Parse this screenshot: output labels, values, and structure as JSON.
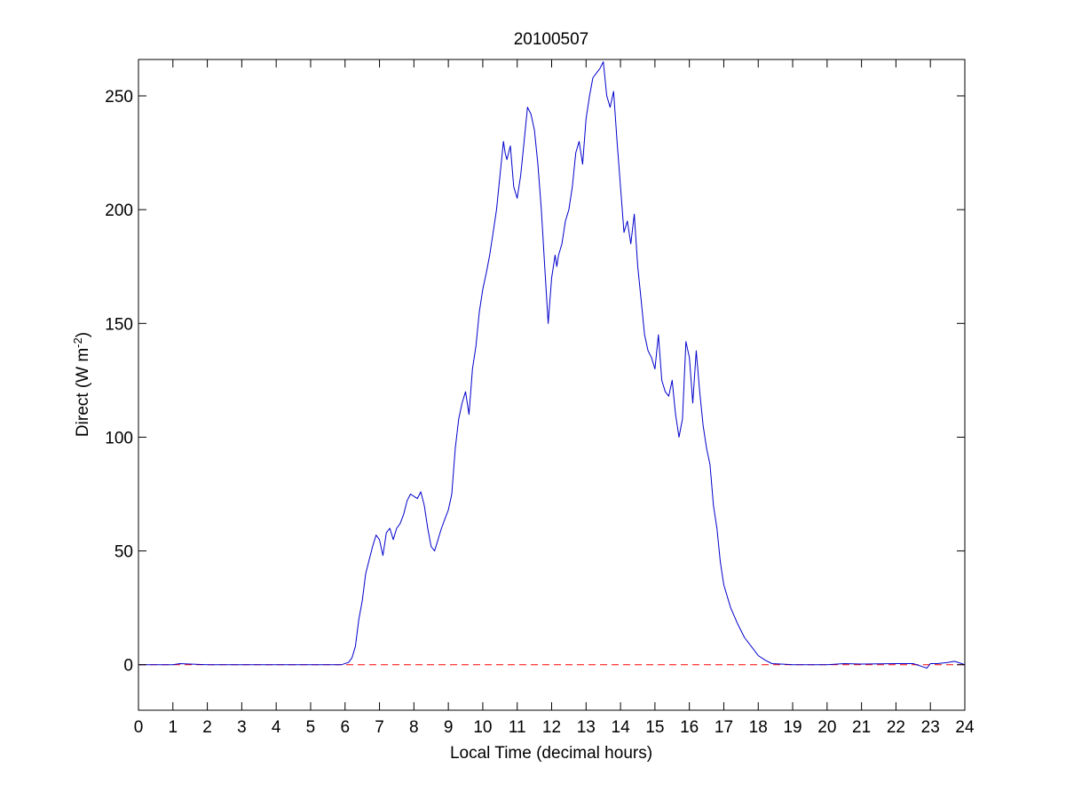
{
  "chart_data": {
    "type": "line",
    "title": "20100507",
    "xlabel": "Local Time (decimal hours)",
    "ylabel_main": "Direct (W m",
    "ylabel_sup": "-2",
    "ylabel_close": ")",
    "xlim": [
      0,
      24
    ],
    "ylim": [
      -20,
      266
    ],
    "xticks": [
      0,
      1,
      2,
      3,
      4,
      5,
      6,
      7,
      8,
      9,
      10,
      11,
      12,
      13,
      14,
      15,
      16,
      17,
      18,
      19,
      20,
      21,
      22,
      23,
      24
    ],
    "yticks": [
      0,
      50,
      100,
      150,
      200,
      250
    ],
    "grid": false,
    "line_color": "#0000cc",
    "reference_line": {
      "y": 0,
      "color": "#ff0000",
      "style": "dashed"
    },
    "series": [
      {
        "x": [
          0,
          1.0,
          1.2,
          1.5,
          2.0,
          3.0,
          4.0,
          5.0,
          5.9,
          6.1,
          6.2,
          6.3,
          6.4,
          6.5,
          6.6,
          6.7,
          6.8,
          6.9,
          7.0,
          7.1,
          7.2,
          7.3,
          7.4,
          7.5,
          7.6,
          7.7,
          7.8,
          7.9,
          8.0,
          8.1,
          8.2,
          8.3,
          8.4,
          8.5,
          8.6,
          8.7,
          8.8,
          8.9,
          9.0,
          9.1,
          9.2,
          9.3,
          9.4,
          9.5,
          9.6,
          9.7,
          9.8,
          9.9,
          10.0,
          10.1,
          10.2,
          10.3,
          10.4,
          10.5,
          10.6,
          10.65,
          10.7,
          10.8,
          10.9,
          11.0,
          11.1,
          11.2,
          11.3,
          11.4,
          11.5,
          11.6,
          11.7,
          11.8,
          11.9,
          12.0,
          12.1,
          12.15,
          12.2,
          12.3,
          12.4,
          12.5,
          12.6,
          12.7,
          12.8,
          12.9,
          13.0,
          13.1,
          13.2,
          13.3,
          13.4,
          13.5,
          13.6,
          13.7,
          13.8,
          13.9,
          14.0,
          14.1,
          14.2,
          14.3,
          14.4,
          14.5,
          14.6,
          14.7,
          14.8,
          14.9,
          15.0,
          15.1,
          15.2,
          15.3,
          15.4,
          15.5,
          15.6,
          15.7,
          15.8,
          15.9,
          16.0,
          16.1,
          16.2,
          16.3,
          16.4,
          16.5,
          16.6,
          16.7,
          16.8,
          16.9,
          17.0,
          17.2,
          17.4,
          17.6,
          17.8,
          18.0,
          18.2,
          18.4,
          19.0,
          20.0,
          20.5,
          21.0,
          22.0,
          22.5,
          22.8,
          22.9,
          23.0,
          23.2,
          23.5,
          23.7,
          24.0
        ],
        "y": [
          0,
          0,
          0.5,
          0.3,
          0,
          0,
          0,
          0,
          0,
          1,
          3,
          8,
          20,
          28,
          40,
          46,
          52,
          57,
          55,
          48,
          58,
          60,
          55,
          60,
          62,
          66,
          72,
          75,
          74,
          73,
          76,
          70,
          60,
          52,
          50,
          55,
          60,
          64,
          68,
          75,
          95,
          108,
          115,
          120,
          110,
          130,
          140,
          155,
          165,
          172,
          180,
          190,
          200,
          215,
          230,
          225,
          222,
          228,
          210,
          205,
          215,
          230,
          245,
          242,
          235,
          220,
          200,
          175,
          150,
          170,
          180,
          175,
          180,
          185,
          195,
          200,
          210,
          225,
          230,
          220,
          240,
          250,
          258,
          260,
          262,
          265,
          250,
          245,
          252,
          230,
          210,
          190,
          195,
          185,
          198,
          175,
          160,
          145,
          138,
          135,
          130,
          145,
          125,
          120,
          118,
          125,
          110,
          100,
          108,
          142,
          135,
          115,
          138,
          120,
          105,
          95,
          88,
          70,
          60,
          45,
          35,
          25,
          18,
          12,
          8,
          4,
          2,
          0.5,
          0,
          0,
          0.5,
          0.3,
          0.5,
          0.5,
          -1,
          -1.5,
          0.5,
          0.5,
          1,
          1.5,
          0
        ]
      }
    ]
  }
}
